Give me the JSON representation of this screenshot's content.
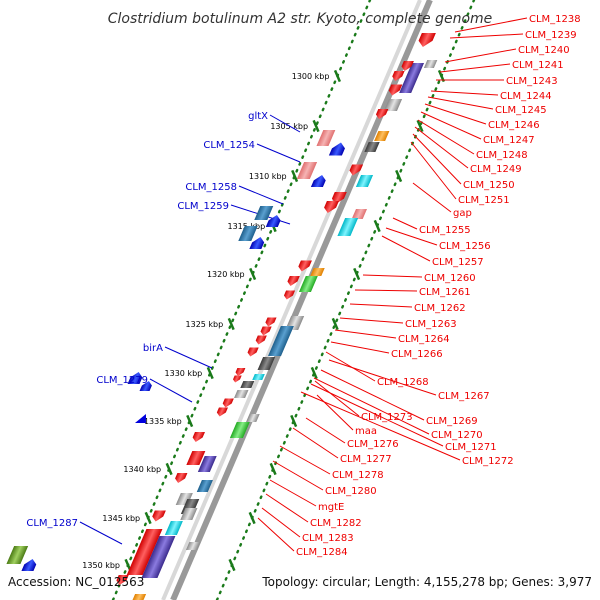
{
  "title": "Clostridium botulinum A2 str. Kyoto, complete genome",
  "footer": {
    "accession": "Accession: NC_012563",
    "topology": "Topology: circular; Length: 4,155,278 bp; Genes: 3,977"
  },
  "colors": {
    "backbone": "#999999",
    "tick": "#1a7a1a",
    "forward_label": "#0000cc",
    "reverse_label": "#ee0000"
  },
  "ruler": [
    {
      "label": "1300 kbp"
    },
    {
      "label": "1305 kbp"
    },
    {
      "label": "1310 kbp"
    },
    {
      "label": "1315 kbp"
    },
    {
      "label": "1320 kbp"
    },
    {
      "label": "1325 kbp"
    },
    {
      "label": "1330 kbp"
    },
    {
      "label": "1335 kbp"
    },
    {
      "label": "1340 kbp"
    },
    {
      "label": "1345 kbp"
    },
    {
      "label": "1350 kbp"
    }
  ],
  "forward_genes": [
    "gltX",
    "CLM_1254",
    "CLM_1258",
    "CLM_1259",
    "birA",
    "CLM_1279",
    "CLM_1287"
  ],
  "reverse_genes": [
    "CLM_1238",
    "CLM_1239",
    "CLM_1240",
    "CLM_1241",
    "CLM_1243",
    "CLM_1244",
    "CLM_1245",
    "CLM_1246",
    "CLM_1247",
    "CLM_1248",
    "CLM_1249",
    "CLM_1250",
    "CLM_1251",
    "gap",
    "CLM_1255",
    "CLM_1256",
    "CLM_1257",
    "CLM_1260",
    "CLM_1261",
    "CLM_1262",
    "CLM_1263",
    "CLM_1264",
    "CLM_1266",
    "CLM_1268",
    "CLM_1267",
    "CLM_1269",
    "CLM_1273",
    "maa",
    "CLM_1270",
    "CLM_1271",
    "CLM_1276",
    "CLM_1272",
    "CLM_1277",
    "CLM_1278",
    "CLM_1280",
    "mgtE",
    "CLM_1282",
    "CLM_1283",
    "CLM_1284"
  ]
}
